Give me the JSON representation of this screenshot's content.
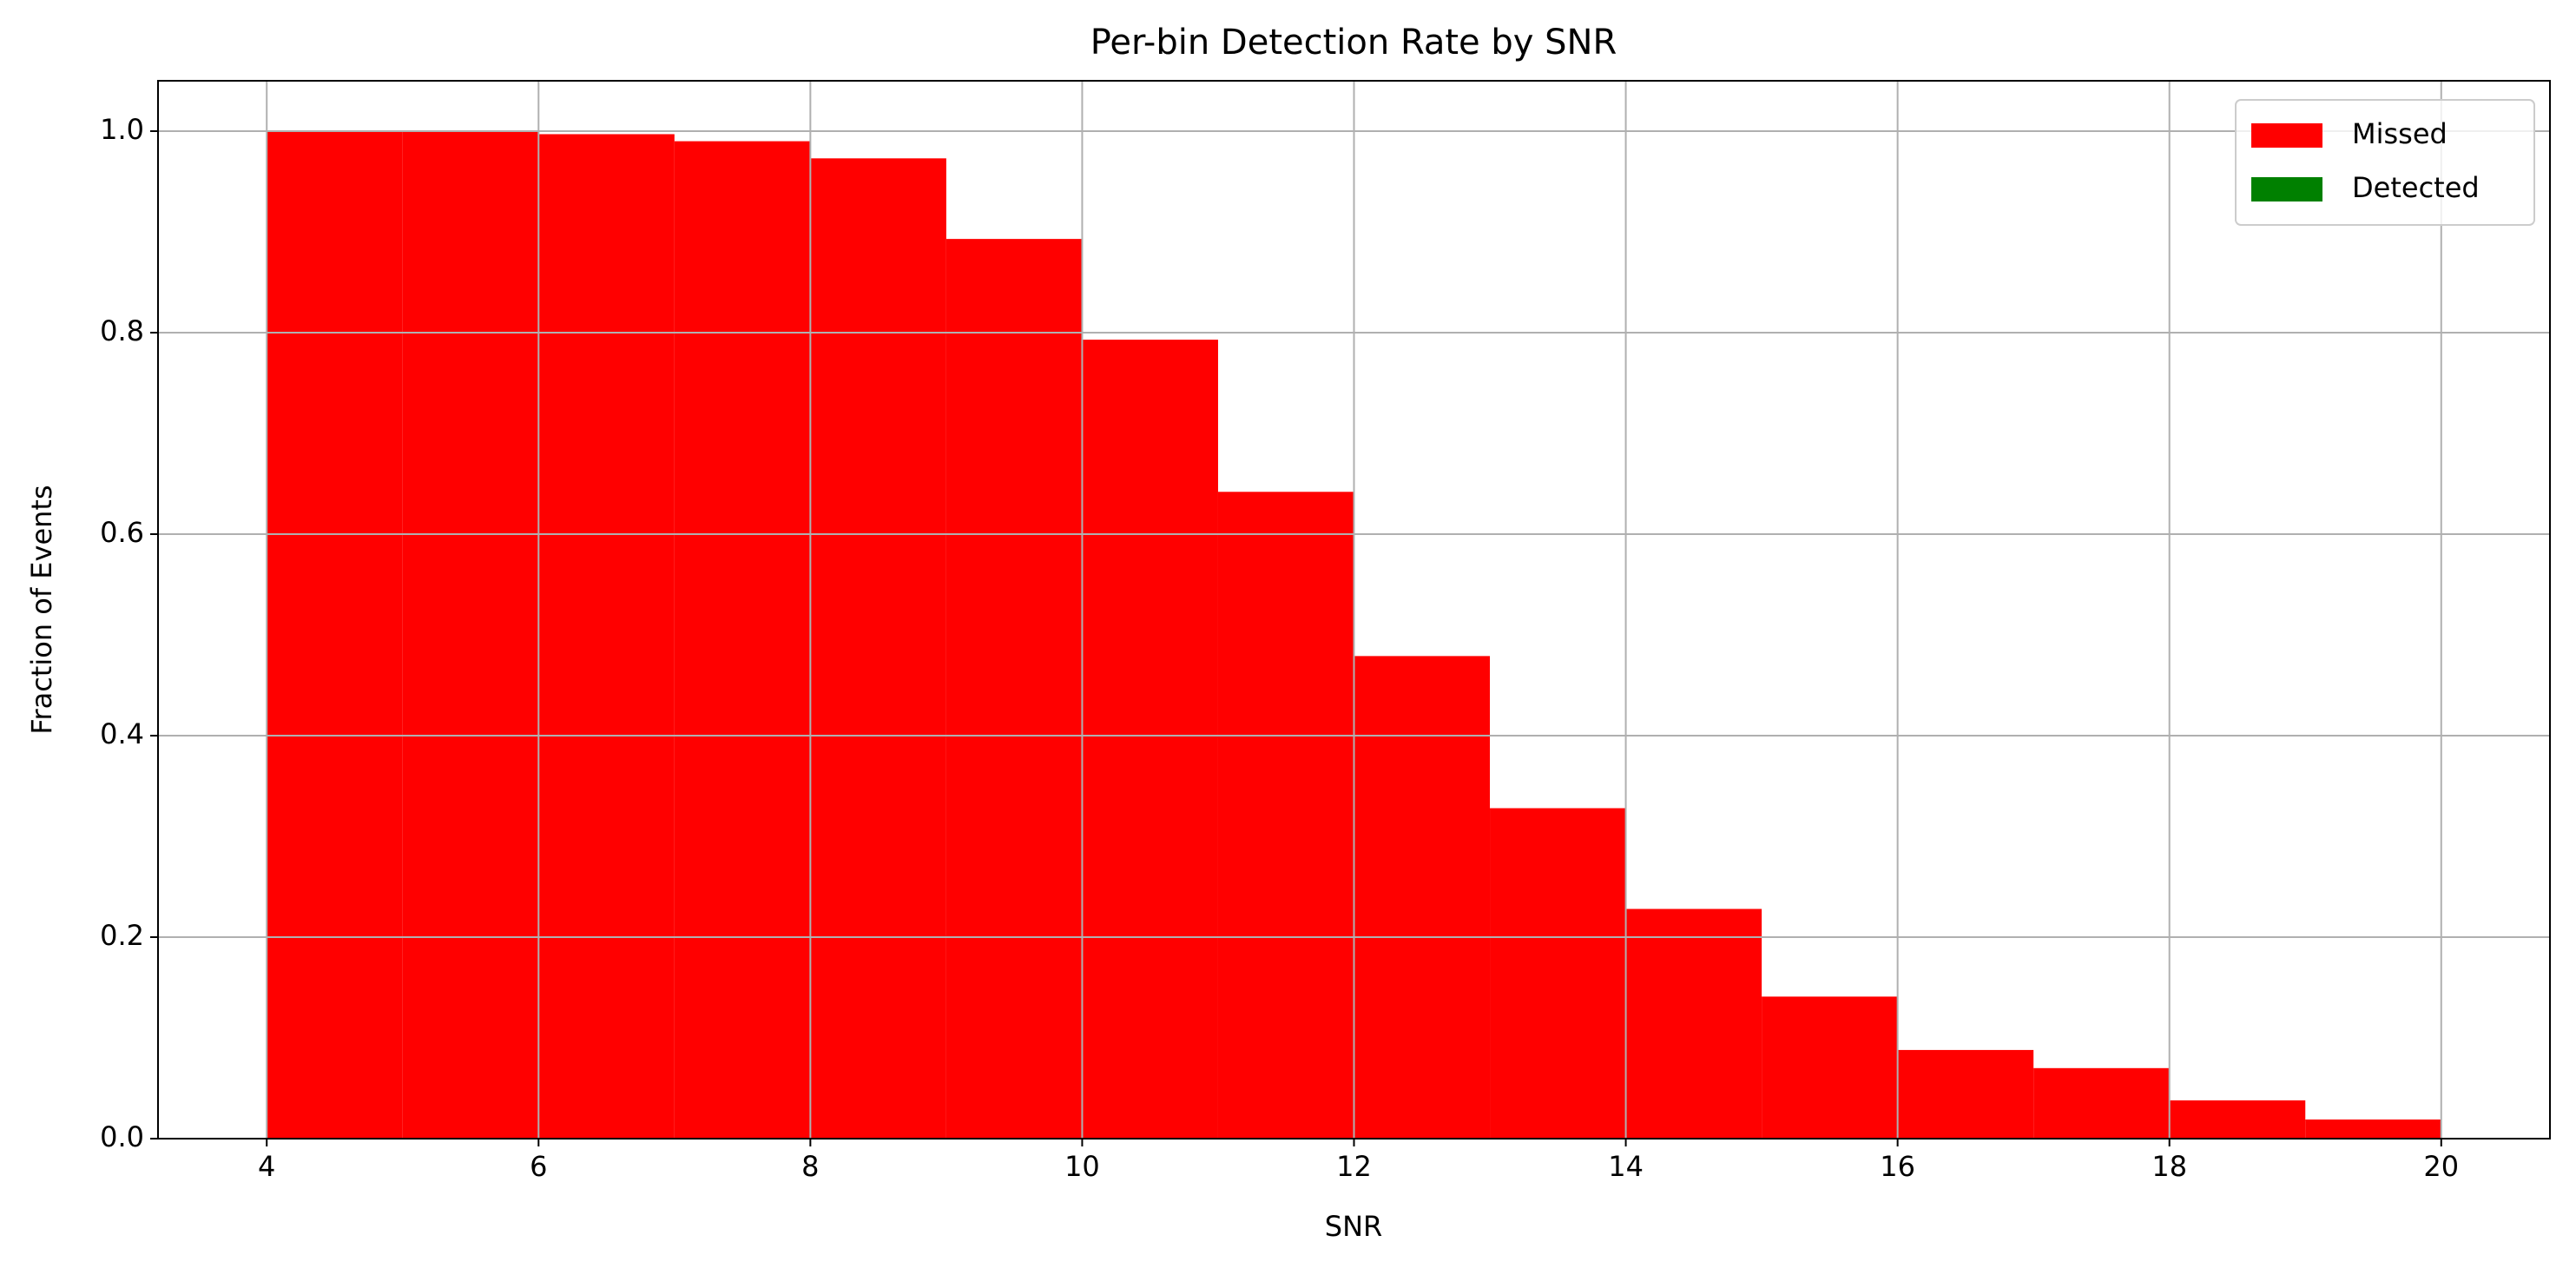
{
  "chart_data": {
    "type": "histogram",
    "title": "Per-bin Detection Rate by SNR",
    "x_label": "SNR",
    "y_label": "Fraction of Events",
    "bins": [
      4,
      5,
      6,
      7,
      8,
      9,
      10,
      11,
      12,
      13,
      14,
      15,
      16,
      17,
      18,
      19,
      20
    ],
    "series": [
      {
        "name": "Missed",
        "color": "#ff0000",
        "values": [
          1.0,
          1.0,
          0.997,
          0.99,
          0.973,
          0.893,
          0.793,
          0.642,
          0.479,
          0.328,
          0.228,
          0.141,
          0.088,
          0.07,
          0.038,
          0.019
        ]
      },
      {
        "name": "Detected",
        "color": "#008000",
        "values": [
          0,
          0,
          0,
          0,
          0,
          0,
          0,
          0,
          0,
          0,
          0,
          0,
          0,
          0,
          0,
          0
        ]
      }
    ],
    "xlim": [
      3.2,
      20.8
    ],
    "ylim": [
      0,
      1.05
    ],
    "xticks": [
      4,
      6,
      8,
      10,
      12,
      14,
      16,
      18,
      20
    ],
    "yticks": [
      {
        "value": 0,
        "label": "0.0"
      },
      0.2,
      0.4,
      0.6,
      0.8,
      {
        "value": 1,
        "label": "1.0"
      }
    ],
    "grid": true,
    "legend": "upper right",
    "stacked": true
  }
}
